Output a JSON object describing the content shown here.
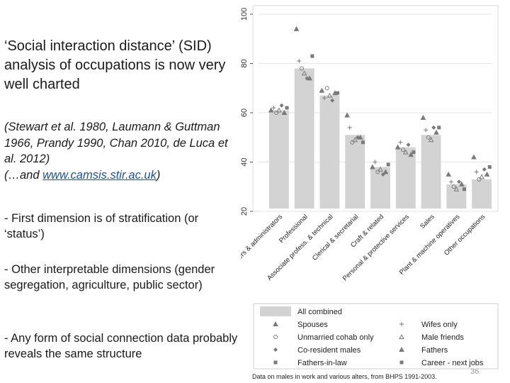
{
  "slide": {
    "title": "‘Social interaction distance’ (SID) analysis of occupations is now very well charted",
    "citation_text": "(Stewart et al. 1980, Laumann & Guttman 1966, Prandy 1990, Chan 2010, de Luca et al. 2012)",
    "citation_prefix": "(…and ",
    "citation_link": "www.camsis.stir.ac.uk",
    "citation_suffix": ")",
    "bullets": [
      "- First dimension is of stratification (or ‘status’)",
      "- Other interpretable dimensions (gender segregation, agriculture, public sector)",
      "- Any form of social connection data probably reveals the same structure"
    ],
    "slide_number": "36"
  },
  "chart_data": {
    "type": "bar",
    "categories": [
      "Managers & administrators",
      "Professional",
      "Associate profess. & technical",
      "Clerical & secretarial",
      "Craft & related",
      "Personal & protective services",
      "Sales",
      "Plant & machine operatives",
      "Other occupations"
    ],
    "values": [
      61,
      78,
      67,
      51,
      38,
      46,
      51,
      31,
      33
    ],
    "overlay_points": [
      [
        61,
        62,
        60,
        61,
        63,
        60,
        62
      ],
      [
        94,
        81,
        78,
        76,
        74,
        74,
        83
      ],
      [
        69,
        66,
        70,
        67,
        65,
        68,
        68
      ],
      [
        59,
        54,
        48,
        49,
        50,
        50,
        48
      ],
      [
        38,
        40,
        36,
        37,
        35,
        36,
        39
      ],
      [
        46,
        48,
        45,
        44,
        47,
        43,
        44
      ],
      [
        58,
        53,
        50,
        49,
        54,
        52,
        54
      ],
      [
        35,
        32,
        30,
        29,
        32,
        31,
        29
      ],
      [
        42,
        36,
        33,
        34,
        37,
        35,
        38
      ]
    ],
    "yticks": [
      20,
      40,
      60,
      80,
      100
    ],
    "ylim": [
      20,
      100
    ],
    "bar_color": "#d3d3d3",
    "legend_items": [
      {
        "label": "All combined",
        "marker": "bar"
      },
      {
        "label": "Spouses",
        "marker": "triangle"
      },
      {
        "label": "Wifes only",
        "marker": "plus"
      },
      {
        "label": "Unmarried cohab only",
        "marker": "circle-hollow"
      },
      {
        "label": "Male friends",
        "marker": "triangle-hollow"
      },
      {
        "label": "Co-resident males",
        "marker": "diamond"
      },
      {
        "label": "Fathers",
        "marker": "triangle"
      },
      {
        "label": "Fathers-in-law",
        "marker": "square"
      },
      {
        "label": "Career - next jobs",
        "marker": "square"
      }
    ],
    "note": "Data on males in work and various alters, from BHPS 1991-2003."
  }
}
